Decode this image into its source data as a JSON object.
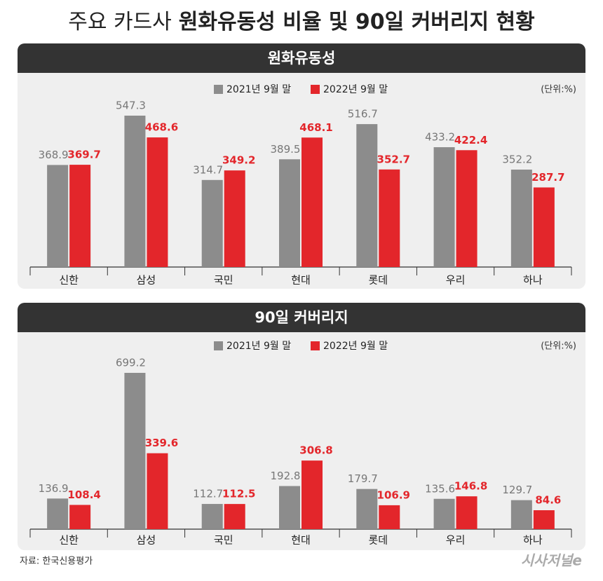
{
  "title": [
    "주요 카드사",
    "원화유동성 비율 및 90일 커버리지 현황"
  ],
  "source": "자료: 한국신용평가",
  "logo": "시사저널e",
  "chart_data": [
    {
      "type": "bar",
      "title": "원화유동성",
      "unit": "(단위:%)",
      "categories": [
        "신한",
        "삼성",
        "국민",
        "현대",
        "롯데",
        "우리",
        "하나"
      ],
      "series": [
        {
          "name": "2021년 9월 말",
          "color": "#8c8c8c",
          "values": [
            368.9,
            547.3,
            314.7,
            389.5,
            516.7,
            433.2,
            352.2
          ]
        },
        {
          "name": "2022년 9월 말",
          "color": "#e3262b",
          "values": [
            369.7,
            468.6,
            349.2,
            468.1,
            352.7,
            422.4,
            287.7
          ]
        }
      ]
    },
    {
      "type": "bar",
      "title": "90일 커버리지",
      "unit": "(단위:%)",
      "categories": [
        "신한",
        "삼성",
        "국민",
        "현대",
        "롯데",
        "우리",
        "하나"
      ],
      "series": [
        {
          "name": "2021년 9월 말",
          "color": "#8c8c8c",
          "values": [
            136.9,
            699.2,
            112.7,
            192.8,
            179.7,
            135.6,
            129.7
          ]
        },
        {
          "name": "2022년 9월 말",
          "color": "#e3262b",
          "values": [
            108.4,
            339.6,
            112.5,
            306.8,
            106.9,
            146.8,
            84.6
          ]
        }
      ]
    }
  ]
}
